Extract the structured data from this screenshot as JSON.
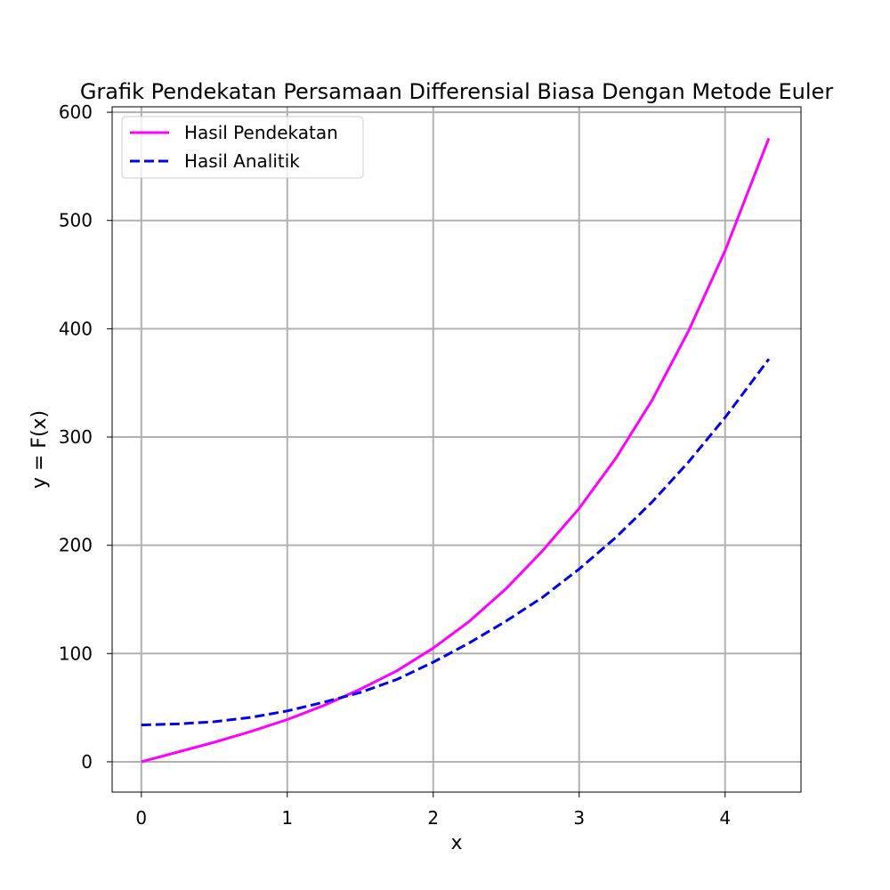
{
  "chart_data": {
    "type": "line",
    "title": "Grafik Pendekatan Persamaan Differensial Biasa Dengan Metode Euler",
    "xlabel": "x",
    "ylabel": "y = F(x)",
    "xlim": [
      -0.2,
      4.52
    ],
    "ylim": [
      -28,
      605
    ],
    "xticks": [
      0,
      1,
      2,
      3,
      4
    ],
    "yticks": [
      0,
      100,
      200,
      300,
      400,
      500,
      600
    ],
    "xtick_labels": [
      "0",
      "1",
      "2",
      "3",
      "4"
    ],
    "ytick_labels": [
      "0",
      "100",
      "200",
      "300",
      "400",
      "500",
      "600"
    ],
    "grid": true,
    "legend_position": "top-left",
    "series": [
      {
        "name": "Hasil Pendekatan",
        "color": "#ff00ff",
        "style": "solid",
        "x": [
          0,
          0.25,
          0.5,
          0.75,
          1.0,
          1.25,
          1.5,
          1.75,
          2.0,
          2.25,
          2.5,
          2.75,
          3.0,
          3.25,
          3.5,
          3.75,
          4.0,
          4.3
        ],
        "y": [
          0,
          9,
          18,
          28,
          39,
          52,
          67,
          84,
          105,
          130,
          160,
          195,
          234,
          280,
          334,
          398,
          472,
          576
        ]
      },
      {
        "name": "Hasil Analitik",
        "color": "#0000ee",
        "style": "dashed",
        "x": [
          0,
          0.25,
          0.5,
          0.75,
          1.0,
          1.25,
          1.5,
          1.75,
          2.0,
          2.25,
          2.5,
          2.75,
          3.0,
          3.25,
          3.5,
          3.75,
          4.0,
          4.3
        ],
        "y": [
          34,
          35,
          37,
          41,
          47,
          55,
          64,
          76,
          92,
          110,
          130,
          152,
          178,
          207,
          240,
          277,
          318,
          372
        ]
      }
    ]
  }
}
